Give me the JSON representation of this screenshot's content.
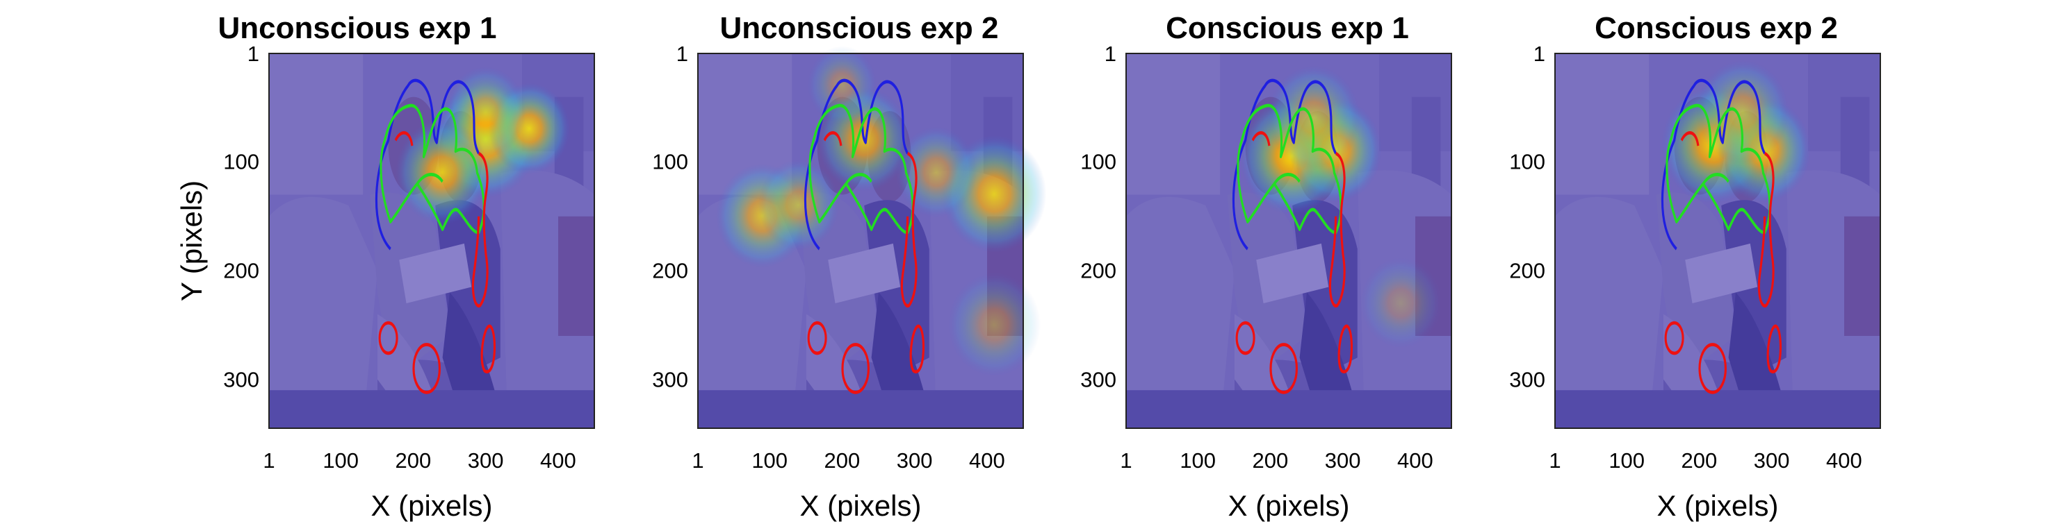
{
  "chart_data": [
    {
      "type": "heatmap",
      "title": "Unconscious exp 1",
      "xlabel": "X (pixels)",
      "ylabel": "Y (pixels)",
      "xticks": [
        1,
        100,
        200,
        300,
        400
      ],
      "yticks": [
        1,
        100,
        200,
        300
      ],
      "xlim": [
        1,
        450
      ],
      "ylim": [
        1,
        345
      ],
      "hotspots": [
        {
          "x": 300,
          "y": 80,
          "intensity": 1.0,
          "spread": 45
        },
        {
          "x": 240,
          "y": 110,
          "intensity": 0.85,
          "spread": 40
        },
        {
          "x": 360,
          "y": 70,
          "intensity": 0.9,
          "spread": 35
        },
        {
          "x": 300,
          "y": 55,
          "intensity": 0.6,
          "spread": 35
        }
      ]
    },
    {
      "type": "heatmap",
      "title": "Unconscious exp 2",
      "xlabel": "X (pixels)",
      "ylabel": "",
      "xticks": [
        1,
        100,
        200,
        300,
        400
      ],
      "yticks": [
        1,
        100,
        200,
        300
      ],
      "xlim": [
        1,
        450
      ],
      "ylim": [
        1,
        345
      ],
      "hotspots": [
        {
          "x": 230,
          "y": 80,
          "intensity": 0.8,
          "spread": 40
        },
        {
          "x": 410,
          "y": 130,
          "intensity": 0.85,
          "spread": 45
        },
        {
          "x": 90,
          "y": 150,
          "intensity": 0.75,
          "spread": 40
        },
        {
          "x": 140,
          "y": 140,
          "intensity": 0.6,
          "spread": 35
        },
        {
          "x": 410,
          "y": 250,
          "intensity": 0.4,
          "spread": 40
        },
        {
          "x": 330,
          "y": 110,
          "intensity": 0.55,
          "spread": 35
        },
        {
          "x": 200,
          "y": 30,
          "intensity": 0.4,
          "spread": 30
        }
      ]
    },
    {
      "type": "heatmap",
      "title": "Conscious exp 1",
      "xlabel": "X (pixels)",
      "ylabel": "",
      "xticks": [
        1,
        100,
        200,
        300,
        400
      ],
      "yticks": [
        1,
        100,
        200,
        300
      ],
      "xlim": [
        1,
        450
      ],
      "ylim": [
        1,
        345
      ],
      "hotspots": [
        {
          "x": 230,
          "y": 95,
          "intensity": 1.0,
          "spread": 45
        },
        {
          "x": 290,
          "y": 90,
          "intensity": 0.9,
          "spread": 40
        },
        {
          "x": 260,
          "y": 60,
          "intensity": 0.6,
          "spread": 40
        },
        {
          "x": 380,
          "y": 230,
          "intensity": 0.3,
          "spread": 35
        }
      ]
    },
    {
      "type": "heatmap",
      "title": "Conscious exp 2",
      "xlabel": "X (pixels)",
      "ylabel": "",
      "xticks": [
        1,
        100,
        200,
        300,
        400
      ],
      "yticks": [
        1,
        100,
        200,
        300
      ],
      "xlim": [
        1,
        450
      ],
      "ylim": [
        1,
        345
      ],
      "hotspots": [
        {
          "x": 220,
          "y": 85,
          "intensity": 0.95,
          "spread": 45
        },
        {
          "x": 290,
          "y": 90,
          "intensity": 0.9,
          "spread": 40
        },
        {
          "x": 260,
          "y": 55,
          "intensity": 0.6,
          "spread": 40
        }
      ]
    }
  ],
  "colors": {
    "overlay_base": "#5a4fb8",
    "photo_wall": "#9a93c6",
    "photo_sofa": "#8b84c0",
    "photo_jeans": "#3c3a8a",
    "photo_skin": "#8d6c9c",
    "contour_blue": "#1f1fe0",
    "contour_green": "#22dd22",
    "contour_red": "#ee1111"
  }
}
